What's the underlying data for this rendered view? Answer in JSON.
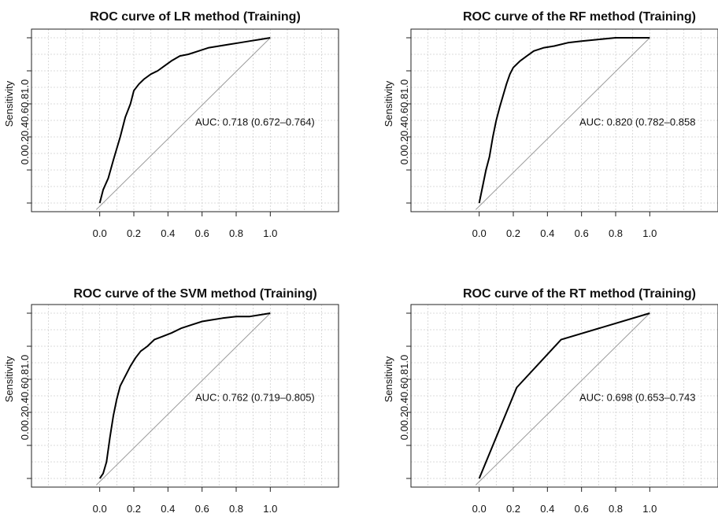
{
  "chart_data": [
    {
      "type": "line",
      "title": "ROC curve of LR method (Training)",
      "ylabel": "Sensitivity",
      "yticks_text": "0.00.20.40.60.81.0",
      "xticks": [
        "0.0",
        "0.2",
        "0.4",
        "0.6",
        "0.8",
        "1.0"
      ],
      "annotation": "AUC: 0.718 (0.672–0.764)",
      "xlim": [
        -0.4,
        1.4
      ],
      "ylim": [
        0,
        1
      ],
      "grid": true,
      "series": [
        {
          "x": [
            0.0,
            0.02,
            0.05,
            0.08,
            0.12,
            0.15,
            0.18,
            0.2,
            0.23,
            0.26,
            0.3,
            0.34,
            0.38,
            0.42,
            0.47,
            0.52,
            0.58,
            0.64,
            0.7,
            0.76,
            0.82,
            0.88,
            0.94,
            1.0
          ],
          "y": [
            0.0,
            0.08,
            0.15,
            0.26,
            0.4,
            0.52,
            0.6,
            0.68,
            0.72,
            0.75,
            0.78,
            0.8,
            0.83,
            0.86,
            0.89,
            0.9,
            0.92,
            0.94,
            0.95,
            0.96,
            0.97,
            0.98,
            0.99,
            1.0
          ]
        }
      ]
    },
    {
      "type": "line",
      "title": "ROC curve of the RF method (Training)",
      "ylabel": "Sensitivity",
      "yticks_text": "0.00.20.40.60.81.0",
      "xticks": [
        "0.0",
        "0.2",
        "0.4",
        "0.6",
        "0.8",
        "1.0"
      ],
      "annotation": "AUC: 0.820 (0.782–0.858",
      "xlim": [
        -0.4,
        1.4
      ],
      "ylim": [
        0,
        1
      ],
      "grid": true,
      "series": [
        {
          "x": [
            0.0,
            0.02,
            0.04,
            0.06,
            0.08,
            0.1,
            0.12,
            0.14,
            0.16,
            0.18,
            0.2,
            0.24,
            0.28,
            0.32,
            0.38,
            0.44,
            0.52,
            0.6,
            0.7,
            0.8,
            0.9,
            1.0
          ],
          "y": [
            0.0,
            0.1,
            0.2,
            0.28,
            0.4,
            0.5,
            0.58,
            0.65,
            0.72,
            0.78,
            0.82,
            0.86,
            0.89,
            0.92,
            0.94,
            0.95,
            0.97,
            0.98,
            0.99,
            1.0,
            1.0,
            1.0
          ]
        }
      ]
    },
    {
      "type": "line",
      "title": "ROC curve of the SVM method (Training)",
      "ylabel": "Sensitivity",
      "yticks_text": "0.00.20.40.60.81.0",
      "xticks": [
        "0.0",
        "0.2",
        "0.4",
        "0.6",
        "0.8",
        "1.0"
      ],
      "annotation": "AUC: 0.762 (0.719–0.805)",
      "xlim": [
        -0.4,
        1.4
      ],
      "ylim": [
        0,
        1
      ],
      "grid": true,
      "series": [
        {
          "x": [
            0.0,
            0.02,
            0.04,
            0.06,
            0.08,
            0.1,
            0.12,
            0.15,
            0.18,
            0.21,
            0.24,
            0.28,
            0.32,
            0.37,
            0.42,
            0.48,
            0.54,
            0.6,
            0.66,
            0.72,
            0.8,
            0.88,
            0.94,
            1.0
          ],
          "y": [
            0.0,
            0.03,
            0.1,
            0.25,
            0.38,
            0.48,
            0.56,
            0.62,
            0.68,
            0.73,
            0.77,
            0.8,
            0.84,
            0.86,
            0.88,
            0.91,
            0.93,
            0.95,
            0.96,
            0.97,
            0.98,
            0.98,
            0.99,
            1.0
          ]
        }
      ]
    },
    {
      "type": "line",
      "title": "ROC curve of the RT method (Training)",
      "ylabel": "Sensitivity",
      "yticks_text": "0.00.20.40.60.81.0",
      "xticks": [
        "0.0",
        "0.2",
        "0.4",
        "0.6",
        "0.8",
        "1.0"
      ],
      "annotation": "AUC: 0.698 (0.653–0.743",
      "xlim": [
        -0.4,
        1.4
      ],
      "ylim": [
        0,
        1
      ],
      "grid": true,
      "series": [
        {
          "x": [
            0.0,
            0.22,
            0.48,
            1.0
          ],
          "y": [
            0.0,
            0.55,
            0.84,
            1.0
          ]
        }
      ]
    }
  ]
}
